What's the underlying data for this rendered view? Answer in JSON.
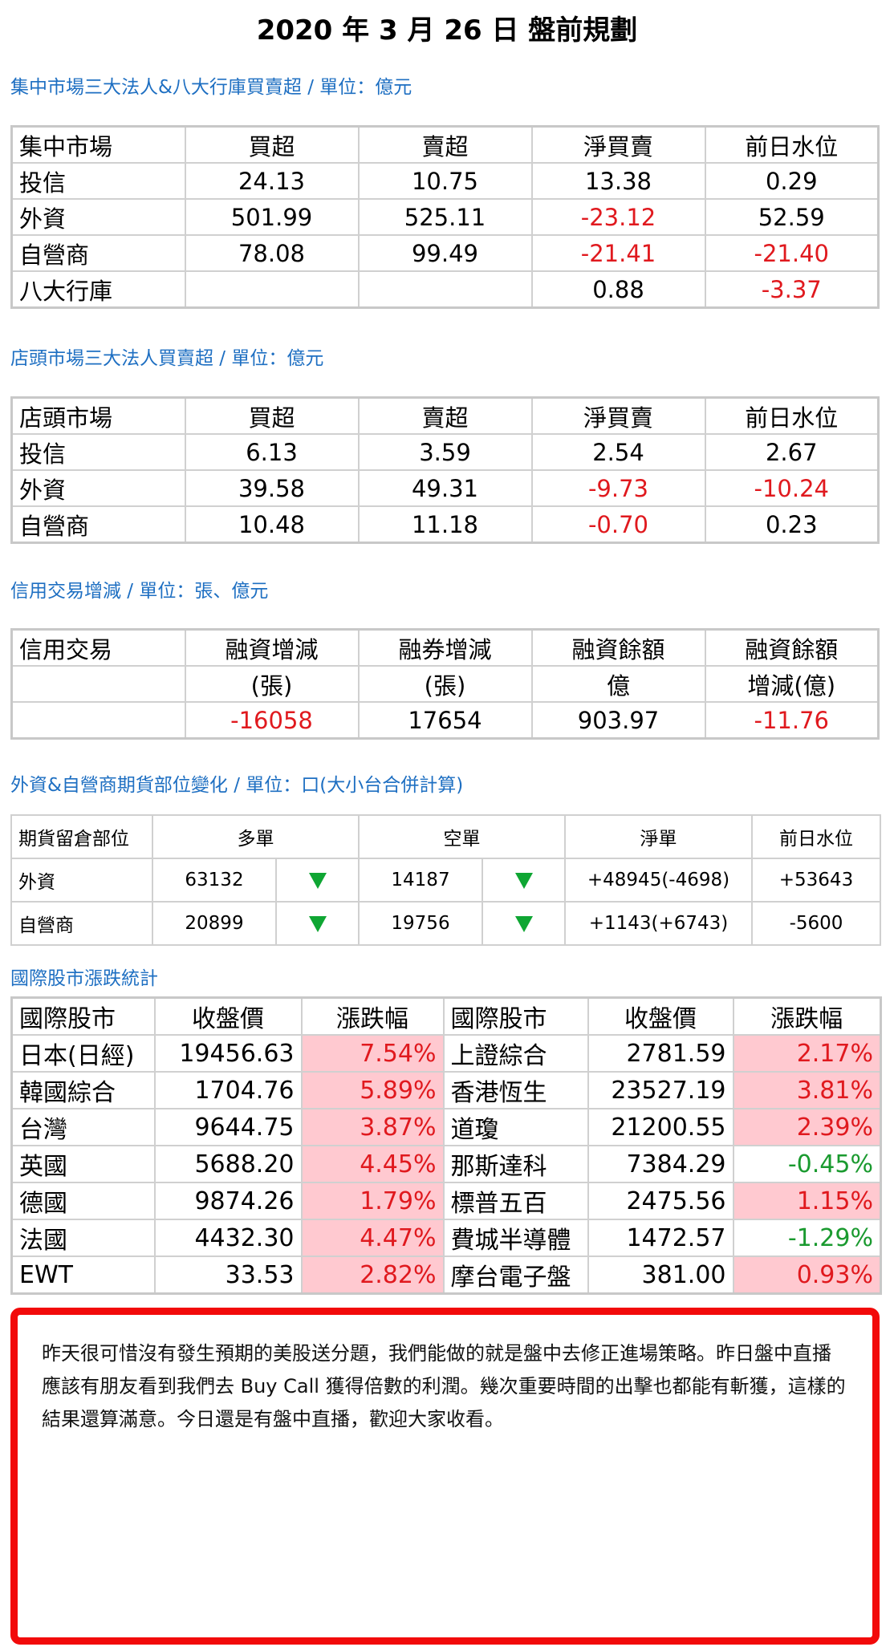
{
  "title": "2020 年 3 月 26 日  盤前規劃",
  "sec1": {
    "heading": "集中市場三大法人&八大行庫買賣超 / 單位：億元",
    "header": [
      "集中市場",
      "買超",
      "賣超",
      "淨買賣",
      "前日水位"
    ],
    "rows": [
      [
        "投信",
        "24.13",
        "10.75",
        "13.38",
        "0.29"
      ],
      [
        "外資",
        "501.99",
        "525.11",
        "-23.12",
        "52.59"
      ],
      [
        "自營商",
        "78.08",
        "99.49",
        "-21.41",
        "-21.40"
      ],
      [
        "八大行庫",
        "",
        "",
        "0.88",
        "-3.37"
      ]
    ]
  },
  "sec2": {
    "heading": "店頭市場三大法人買賣超 / 單位：億元",
    "header": [
      "店頭市場",
      "買超",
      "賣超",
      "淨買賣",
      "前日水位"
    ],
    "rows": [
      [
        "投信",
        "6.13",
        "3.59",
        "2.54",
        "2.67"
      ],
      [
        "外資",
        "39.58",
        "49.31",
        "-9.73",
        "-10.24"
      ],
      [
        "自營商",
        "10.48",
        "11.18",
        "-0.70",
        "0.23"
      ]
    ]
  },
  "sec3": {
    "heading": "信用交易增減 / 單位：張、億元",
    "header1": [
      "信用交易",
      "融資增減",
      "融券增減",
      "融資餘額",
      "融資餘額"
    ],
    "header2": [
      "",
      "(張)",
      "(張)",
      "億",
      "增減(億)"
    ],
    "row": [
      "",
      "-16058",
      "17654",
      "903.97",
      "-11.76"
    ]
  },
  "sec4": {
    "heading": "外資&自營商期貨部位變化 / 單位：口(大小台合併計算)",
    "header": [
      "期貨留倉部位",
      "多單",
      "空單",
      "淨單",
      "前日水位"
    ],
    "rows": [
      {
        "name": "外資",
        "long": "63132",
        "short": "14187",
        "net": "+48945(-4698)",
        "prev": "+53643"
      },
      {
        "name": "自營商",
        "long": "20899",
        "short": "19756",
        "net": "+1143(+6743)",
        "prev": "-5600"
      }
    ],
    "down_icon": "down-triangle-icon",
    "down_color": "#0fa633"
  },
  "sec5": {
    "heading": "國際股市漲跌統計",
    "header": [
      "國際股市",
      "收盤價",
      "漲跌幅",
      "國際股市",
      "收盤價",
      "漲跌幅"
    ],
    "rows": [
      [
        "日本(日經)",
        "19456.63",
        "7.54%",
        "上證綜合",
        "2781.59",
        "2.17%"
      ],
      [
        "韓國綜合",
        "1704.76",
        "5.89%",
        "香港恆生",
        "23527.19",
        "3.81%"
      ],
      [
        "台灣",
        "9644.75",
        "3.87%",
        "道瓊",
        "21200.55",
        "2.39%"
      ],
      [
        "英國",
        "5688.20",
        "4.45%",
        "那斯達科",
        "7384.29",
        "-0.45%"
      ],
      [
        "德國",
        "9874.26",
        "1.79%",
        "標普五百",
        "2475.56",
        "1.15%"
      ],
      [
        "法國",
        "4432.30",
        "4.47%",
        "費城半導體",
        "1472.57",
        "-1.29%"
      ],
      [
        "EWT",
        "33.53",
        "2.82%",
        "摩台電子盤",
        "381.00",
        "0.93%"
      ]
    ],
    "up_color": "#e0191e",
    "down_color": "#1a9a2f",
    "up_bg": "#ffc9d0"
  },
  "note": "昨天很可惜沒有發生預期的美股送分題，我們能做的就是盤中去修正進場策略。昨日盤中直播應該有朋友看到我們去 Buy Call 獲得倍數的利潤。幾次重要時間的出擊也都能有斬獲，這樣的結果還算滿意。今日還是有盤中直播，歡迎大家收看。",
  "colors": {
    "heading": "#1e6fc2",
    "negative": "#e0191e",
    "note_border": "#f20a0a"
  }
}
